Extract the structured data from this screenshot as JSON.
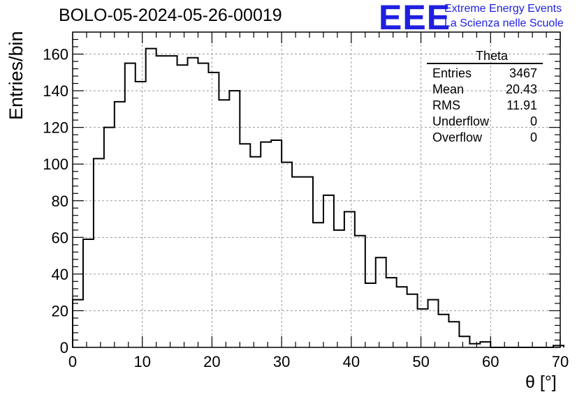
{
  "header": {
    "title": "BOLO-05-2024-05-26-00019",
    "logo_text": "EEE",
    "logo_line1": "Extreme Energy Events",
    "logo_line2": "La Scienza nelle Scuole"
  },
  "stats_box": {
    "name": "Theta",
    "rows": [
      {
        "label": "Entries",
        "value": "3467"
      },
      {
        "label": "Mean",
        "value": "20.43"
      },
      {
        "label": "RMS",
        "value": "11.91"
      },
      {
        "label": "Underflow",
        "value": "0"
      },
      {
        "label": "Overflow",
        "value": "0"
      }
    ]
  },
  "colors": {
    "line": "#000000",
    "grid": "#9a9a9a",
    "logo": "#1f1fe0"
  },
  "chart_data": {
    "type": "histogram",
    "title": "BOLO-05-2024-05-26-00019",
    "xlabel": "θ [°]",
    "ylabel": "Entries/bin",
    "xlim": [
      0,
      70
    ],
    "ylim": [
      0,
      172
    ],
    "grid": true,
    "bin_width": 1.5,
    "x_ticks": [
      0,
      10,
      20,
      30,
      40,
      50,
      60,
      70
    ],
    "y_ticks": [
      0,
      20,
      40,
      60,
      80,
      100,
      120,
      140,
      160
    ],
    "values": [
      26,
      59,
      103,
      120,
      134,
      155,
      145,
      163,
      159,
      159,
      154,
      158,
      155,
      150,
      135,
      140,
      111,
      104,
      112,
      113,
      101,
      93,
      93,
      68,
      83,
      64,
      74,
      61,
      35,
      49,
      38,
      33,
      29,
      21,
      26,
      18,
      14,
      6,
      2,
      3,
      0,
      0,
      0,
      0,
      0,
      0,
      1
    ]
  }
}
